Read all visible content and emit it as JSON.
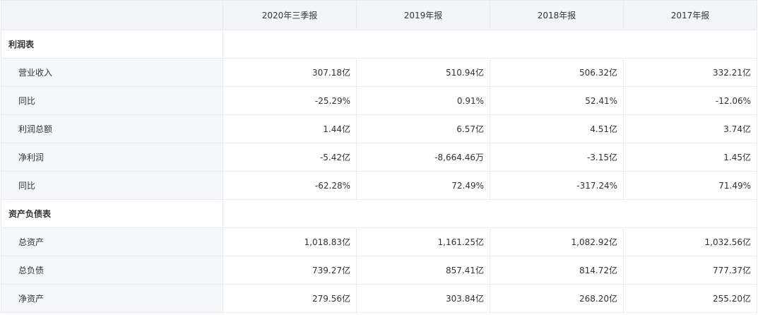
{
  "columns": [
    "",
    "2020年三季报",
    "2019年报",
    "2018年报",
    "2017年报"
  ],
  "sections": [
    {
      "title": "利润表",
      "rows": [
        {
          "label": "营业收入",
          "values": [
            "307.18亿",
            "510.94亿",
            "506.32亿",
            "332.21亿"
          ]
        },
        {
          "label": "同比",
          "values": [
            "-25.29%",
            "0.91%",
            "52.41%",
            "-12.06%"
          ]
        },
        {
          "label": "利润总额",
          "values": [
            "1.44亿",
            "6.57亿",
            "4.51亿",
            "3.74亿"
          ]
        },
        {
          "label": "净利润",
          "values": [
            "-5.42亿",
            "-8,664.46万",
            "-3.15亿",
            "1.45亿"
          ]
        },
        {
          "label": "同比",
          "values": [
            "-62.28%",
            "72.49%",
            "-317.24%",
            "71.49%"
          ]
        }
      ]
    },
    {
      "title": "资产负债表",
      "rows": [
        {
          "label": "总资产",
          "values": [
            "1,018.83亿",
            "1,161.25亿",
            "1,082.92亿",
            "1,032.56亿"
          ]
        },
        {
          "label": "总负债",
          "values": [
            "739.27亿",
            "857.41亿",
            "814.72亿",
            "777.37亿"
          ]
        },
        {
          "label": "净资产",
          "values": [
            "279.56亿",
            "303.84亿",
            "268.20亿",
            "255.20亿"
          ]
        }
      ]
    }
  ]
}
